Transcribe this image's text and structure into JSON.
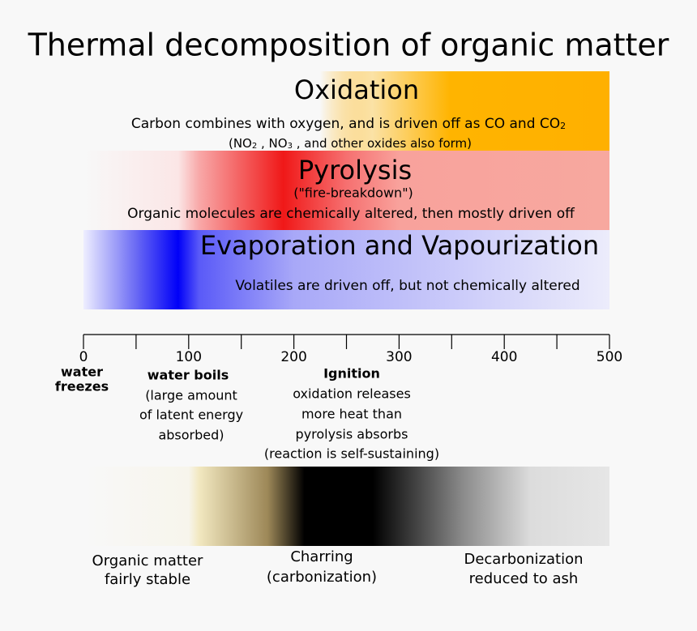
{
  "title": "Thermal decomposition of organic matter",
  "oxidation": {
    "name": "Oxidation",
    "line1": [
      "Carbon combines with oxygen, and is driven off as CO and CO",
      "2"
    ],
    "line2": [
      "(NO",
      "2",
      " , NO",
      "3",
      " , and other oxides also form)"
    ]
  },
  "pyrolysis": {
    "name": "Pyrolysis",
    "alias": "(\"fire-breakdown\")",
    "description": "Organic molecules are chemically altered, then mostly driven off"
  },
  "evaporation": {
    "name": "Evaporation and Vapourization",
    "description": "Volatiles are driven off, but not chemically altered"
  },
  "axis": {
    "min": 0,
    "max": 500,
    "ticks": [
      0,
      50,
      100,
      150,
      200,
      250,
      300,
      350,
      400,
      450,
      500
    ],
    "labels": [
      0,
      100,
      200,
      300,
      400,
      500
    ]
  },
  "notes": {
    "freezes": [
      "water",
      "freezes"
    ],
    "boils": {
      "title": "water boils",
      "lines": [
        "(large amount",
        "of latent energy",
        "absorbed)"
      ]
    },
    "ignition": {
      "title": "Ignition",
      "lines": [
        "oxidation releases",
        "more heat than",
        "pyrolysis absorbs",
        "(reaction is self-sustaining)"
      ]
    }
  },
  "stages": {
    "stable": [
      "Organic matter",
      "fairly stable"
    ],
    "charring": [
      "Charring",
      "(carbonization)"
    ],
    "ash": [
      "Decarbonization",
      "reduced to ash"
    ]
  }
}
